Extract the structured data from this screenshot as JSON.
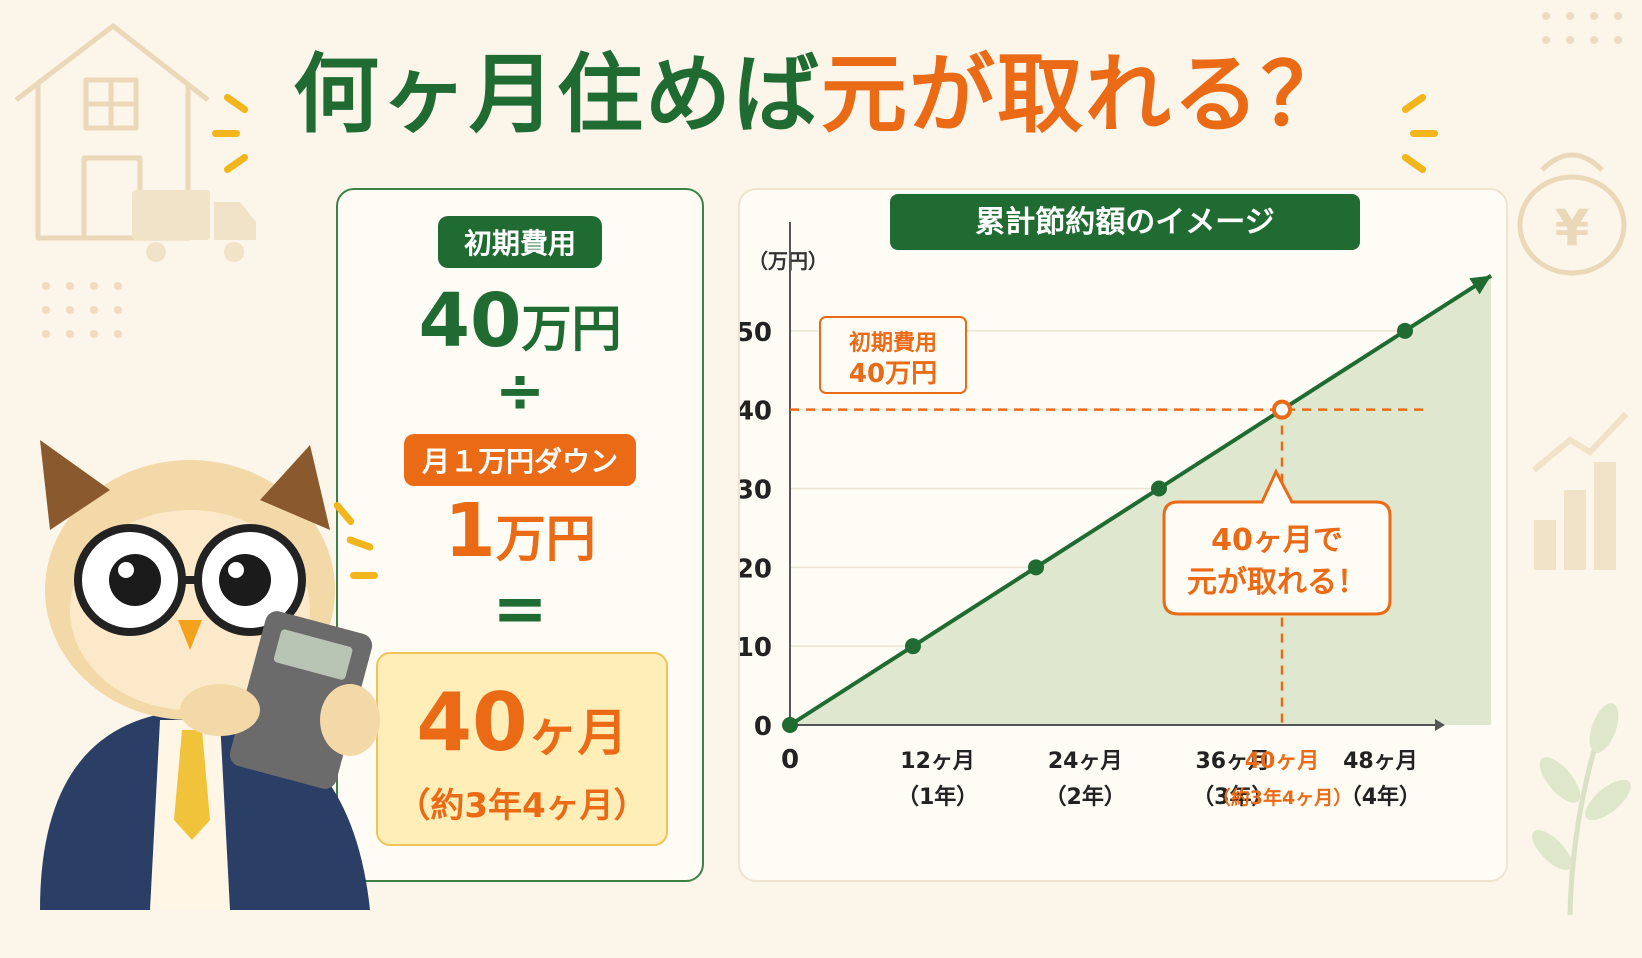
{
  "title": {
    "part1": "何ヶ月住めば",
    "part2": "元が取れる？"
  },
  "left_panel": {
    "initial_cost_label": "初期費用",
    "initial_cost_value": "40",
    "initial_cost_unit": "万円",
    "divide_symbol": "÷",
    "monthly_saving_label": "月１万円ダウン",
    "monthly_saving_value": "1",
    "monthly_saving_unit": "万円",
    "equals_symbol": "=",
    "result_value": "40",
    "result_unit": "ヶ月",
    "result_sub": "（約3年4ヶ月）"
  },
  "chart_data": {
    "type": "area",
    "title": "累計節約額のイメージ",
    "ylabel": "（万円）",
    "xlabel": "",
    "x": [
      0,
      12,
      24,
      36,
      48
    ],
    "x_extent": [
      0,
      50
    ],
    "points": [
      {
        "x": 0,
        "y": 0
      },
      {
        "x": 10,
        "y": 10
      },
      {
        "x": 20,
        "y": 20
      },
      {
        "x": 30,
        "y": 30
      },
      {
        "x": 40,
        "y": 40
      },
      {
        "x": 50,
        "y": 50
      },
      {
        "x": 57,
        "y": 57
      }
    ],
    "yticks": [
      "0",
      "10",
      "20",
      "30",
      "40",
      "50"
    ],
    "ylim": [
      0,
      60
    ],
    "xticks": [
      {
        "value": 0,
        "line1": "0",
        "line2": ""
      },
      {
        "value": 12,
        "line1": "12ヶ月",
        "line2": "（1年）"
      },
      {
        "value": 24,
        "line1": "24ヶ月",
        "line2": "（2年）"
      },
      {
        "value": 36,
        "line1": "36ヶ月",
        "line2": "（3年）"
      },
      {
        "value": 40,
        "line1": "40ヶ月",
        "line2": "（約3年4ヶ月）",
        "highlight": true
      },
      {
        "value": 48,
        "line1": "48ヶ月",
        "line2": "（4年）"
      }
    ],
    "threshold": {
      "y": 40,
      "label_line1": "初期費用",
      "label_line2": "40万円"
    },
    "breakeven": {
      "x": 40,
      "y": 40,
      "callout_line1": "40ヶ月で",
      "callout_line2": "元が取れる！"
    },
    "grid": true,
    "colors": {
      "line": "#1f6b32",
      "fill": "#dfe8cf",
      "accent": "#ea6a16",
      "axis": "#555555"
    }
  }
}
